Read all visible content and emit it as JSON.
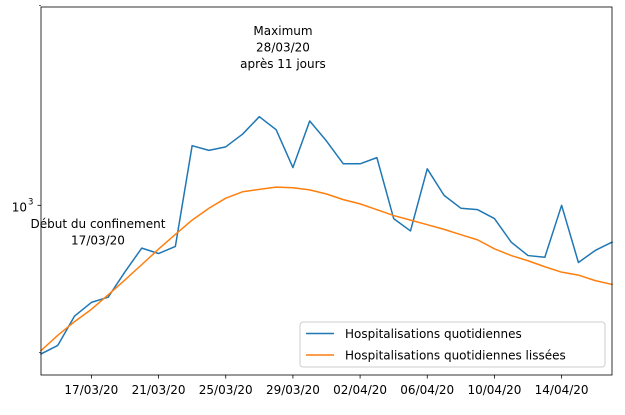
{
  "chart_data": {
    "type": "line",
    "x_dates": [
      "14/03/20",
      "15/03/20",
      "16/03/20",
      "17/03/20",
      "18/03/20",
      "19/03/20",
      "20/03/20",
      "21/03/20",
      "22/03/20",
      "23/03/20",
      "24/03/20",
      "25/03/20",
      "26/03/20",
      "27/03/20",
      "28/03/20",
      "29/03/20",
      "30/03/20",
      "31/03/20",
      "01/04/20",
      "02/04/20",
      "03/04/20",
      "04/04/20",
      "05/04/20",
      "06/04/20",
      "07/04/20",
      "08/04/20",
      "09/04/20",
      "10/04/20",
      "11/04/20",
      "12/04/20",
      "13/04/20",
      "14/04/20",
      "15/04/20",
      "16/04/20",
      "17/04/20"
    ],
    "xticks": [
      "17/03/20",
      "21/03/20",
      "25/03/20",
      "29/03/20",
      "02/04/20",
      "06/04/20",
      "10/04/20",
      "14/04/20"
    ],
    "yscale": "log",
    "ylim": [
      555,
      1990
    ],
    "yticks_major": [
      {
        "value": 1000,
        "label": "10",
        "exp": "3"
      }
    ],
    "yticks_minor": [
      600,
      2000
    ],
    "series": [
      {
        "name": "Hospitalisations quotidiennes",
        "color": "#1f77b4",
        "values": [
          597,
          615,
          681,
          714,
          727,
          794,
          862,
          846,
          867,
          1230,
          1210,
          1225,
          1280,
          1360,
          1300,
          1140,
          1340,
          1250,
          1155,
          1155,
          1180,
          955,
          915,
          1135,
          1035,
          990,
          985,
          955,
          880,
          840,
          835,
          1000,
          820,
          855,
          880
        ]
      },
      {
        "name": "Hospitalisations quotidiennes lissées",
        "color": "#ff7f0e",
        "values": [
          604,
          637,
          668,
          697,
          733,
          772,
          814,
          859,
          904,
          950,
          990,
          1025,
          1048,
          1057,
          1065,
          1063,
          1055,
          1040,
          1020,
          1005,
          985,
          965,
          950,
          935,
          920,
          903,
          887,
          860,
          840,
          825,
          808,
          793,
          785,
          770,
          760
        ]
      }
    ],
    "annotations": [
      {
        "lines": [
          "Début du confinement",
          "17/03/20"
        ],
        "x_date": "17/03/20"
      },
      {
        "lines": [
          "Maximum",
          "28/03/20",
          "après 11 jours"
        ],
        "x_date": "28/03/20"
      }
    ],
    "legend_position": "lower-right",
    "grid": false
  }
}
